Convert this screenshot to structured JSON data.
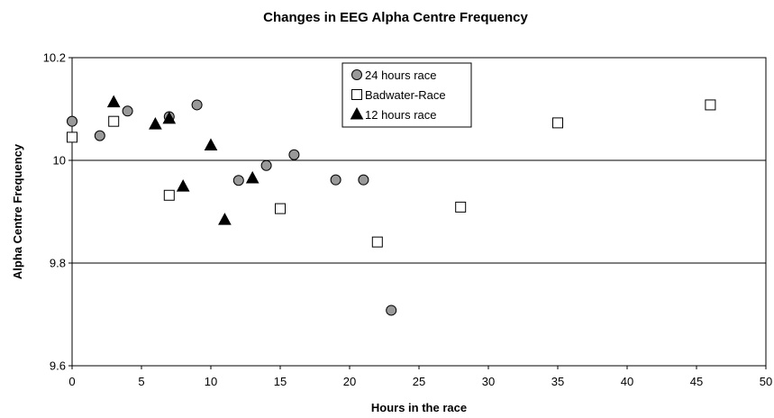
{
  "chart_data": {
    "type": "scatter",
    "title": "Changes in EEG Alpha Centre Frequency",
    "xlabel": "Hours in the race",
    "ylabel": "Alpha Centre Frequency",
    "xlim": [
      0,
      50
    ],
    "ylim": [
      9.6,
      10.2
    ],
    "xticks": [
      "0",
      "5",
      "10",
      "15",
      "20",
      "25",
      "30",
      "35",
      "40",
      "45",
      "50"
    ],
    "yticks": [
      "9.6",
      "9.8",
      "10",
      "10.2"
    ],
    "grid": "horizontal",
    "legend_position": "top-center",
    "series": [
      {
        "name": "24 hours race",
        "marker": "circle",
        "color": "#999999",
        "points": [
          [
            0,
            10.076
          ],
          [
            2,
            10.048
          ],
          [
            4,
            10.096
          ],
          [
            7,
            10.085
          ],
          [
            9,
            10.108
          ],
          [
            12,
            9.961
          ],
          [
            14,
            9.99
          ],
          [
            16,
            10.011
          ],
          [
            19,
            9.962
          ],
          [
            21,
            9.962
          ],
          [
            23,
            9.708
          ]
        ]
      },
      {
        "name": "Badwater-Race",
        "marker": "square",
        "color": "#ffffff",
        "points": [
          [
            0,
            10.045
          ],
          [
            3,
            10.076
          ],
          [
            7,
            9.932
          ],
          [
            15,
            9.906
          ],
          [
            22,
            9.841
          ],
          [
            28,
            9.909
          ],
          [
            35,
            10.073
          ],
          [
            46,
            10.108
          ]
        ]
      },
      {
        "name": "12 hours race",
        "marker": "triangle",
        "color": "#000000",
        "points": [
          [
            3,
            10.113
          ],
          [
            6,
            10.07
          ],
          [
            7,
            10.081
          ],
          [
            8,
            9.949
          ],
          [
            10,
            10.029
          ],
          [
            11,
            9.884
          ],
          [
            13,
            9.965
          ]
        ]
      }
    ]
  }
}
